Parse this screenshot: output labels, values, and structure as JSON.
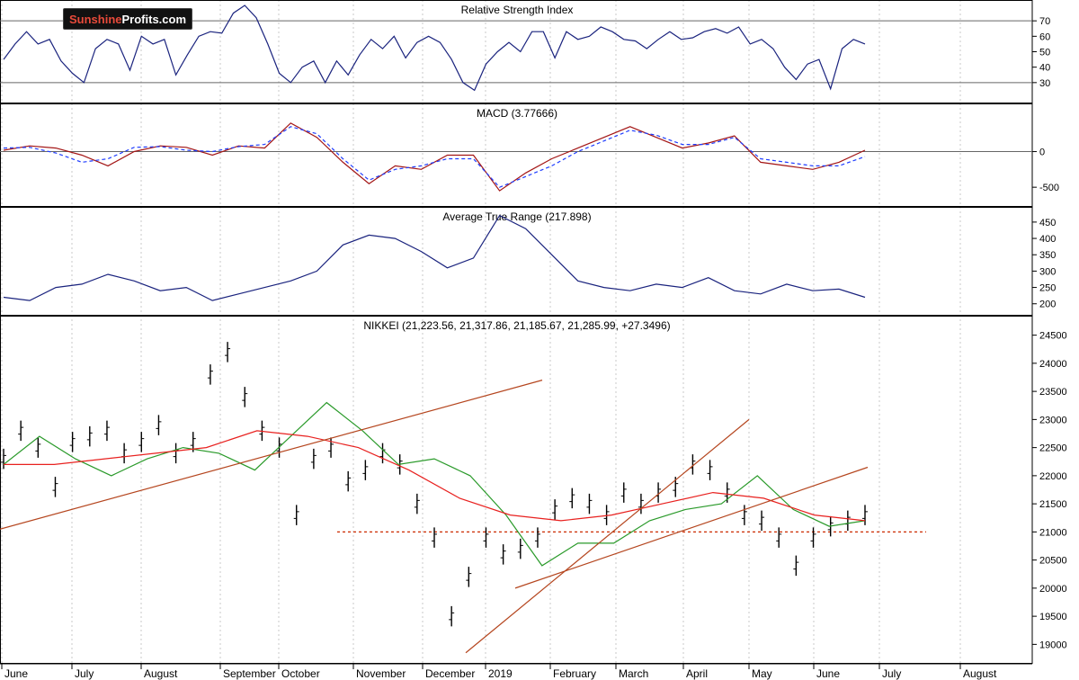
{
  "brand": {
    "part1": "Sunshine",
    "part2": "Profits.com"
  },
  "colors": {
    "price": "#000000",
    "rsi": "#1a237e",
    "macd": "#a31515",
    "signal": "#1e3cff",
    "atr": "#1a237e",
    "sma_fast": "#2a9a2a",
    "sma_slow": "#e8211f",
    "trendline": "#b5461f",
    "support": "#cc2a00",
    "grid": "#c8c8c8"
  },
  "chart_data": [
    {
      "type": "line",
      "title": "Relative Strength Index",
      "ylim": [
        20,
        80
      ],
      "yticks": [
        70,
        60,
        50,
        40,
        30
      ],
      "reference_lines": [
        70,
        30
      ],
      "series": [
        {
          "values": [
            45,
            55,
            63,
            55,
            58,
            44,
            36,
            30,
            52,
            58,
            55,
            38,
            60,
            55,
            58,
            35,
            48,
            60,
            63,
            62,
            75,
            80,
            72,
            55,
            36,
            30,
            40,
            44,
            30,
            44,
            35,
            48,
            58,
            52,
            60,
            46,
            56,
            60,
            56,
            45,
            30,
            25,
            42,
            50,
            56,
            50,
            63,
            63,
            46,
            63,
            58,
            60,
            66,
            63,
            58,
            57,
            52,
            58,
            63,
            58,
            59,
            63,
            65,
            62,
            66,
            55,
            58,
            52,
            40,
            32,
            42,
            45,
            26,
            52,
            58,
            55
          ]
        }
      ]
    },
    {
      "type": "line",
      "title": "MACD (3.77666)",
      "ylim": [
        -700,
        600
      ],
      "yticks": [
        0,
        -500
      ],
      "series": [
        {
          "values": [
            20,
            80,
            50,
            -50,
            -200,
            0,
            80,
            60,
            -50,
            80,
            50,
            400,
            200,
            -150,
            -450,
            -200,
            -250,
            -50,
            -50,
            -550,
            -300,
            -100,
            50,
            200,
            350,
            200,
            50,
            120,
            220,
            -150,
            -200,
            -250,
            -150,
            20
          ]
        },
        {
          "values": [
            50,
            60,
            -20,
            -150,
            -100,
            60,
            70,
            20,
            0,
            70,
            100,
            350,
            250,
            -100,
            -400,
            -250,
            -200,
            -100,
            -100,
            -500,
            -350,
            -200,
            0,
            150,
            300,
            230,
            100,
            100,
            200,
            -100,
            -150,
            -200,
            -200,
            -70
          ]
        }
      ]
    },
    {
      "type": "line",
      "title": "Average True Range (217.898)",
      "ylim": [
        180,
        480
      ],
      "yticks": [
        450,
        400,
        350,
        300,
        250,
        200
      ],
      "series": [
        {
          "values": [
            220,
            210,
            250,
            260,
            290,
            270,
            240,
            250,
            210,
            230,
            250,
            270,
            300,
            380,
            410,
            400,
            360,
            310,
            340,
            470,
            430,
            350,
            270,
            250,
            240,
            260,
            250,
            280,
            240,
            230,
            260,
            240,
            245,
            220
          ]
        }
      ]
    },
    {
      "type": "line",
      "title": "NIKKEI (21,223.56, 21,317.86, 21,185.67, 21,285.99, +27.3496)",
      "ylim": [
        18750,
        24750
      ],
      "yticks": [
        24500,
        24000,
        23500,
        23000,
        22500,
        22000,
        21500,
        21000,
        20500,
        20000,
        19500,
        19000
      ],
      "xlabels": [
        "June",
        "July",
        "August",
        "September",
        "October",
        "November",
        "December",
        "2019",
        "February",
        "March",
        "April",
        "May",
        "June",
        "July",
        "August"
      ],
      "series": [
        {
          "name": "",
          "values": [
            22300,
            22800,
            22500,
            21800,
            22600,
            22700,
            22800,
            22400,
            22600,
            22900,
            22400,
            22600,
            23800,
            24200,
            23400,
            22800,
            22500,
            21300,
            22300,
            22500,
            21900,
            22100,
            22400,
            22200,
            21500,
            20900,
            19500,
            20200,
            20900,
            20600,
            20700,
            20900,
            21400,
            21600,
            21500,
            21300,
            21700,
            21500,
            21700,
            21800,
            22200,
            22100,
            21700,
            21300,
            21200,
            20900,
            20400,
            20900,
            21100,
            21200,
            21300
          ]
        },
        {
          "name": "",
          "values": [
            22200,
            22700,
            22300,
            22000,
            22300,
            22500,
            22400,
            22100,
            22700,
            23300,
            22800,
            22200,
            22300,
            22000,
            21300,
            20400,
            20800,
            20800,
            21200,
            21400,
            21500,
            22000,
            21400,
            21100,
            21200
          ]
        },
        {
          "name": "",
          "values": [
            22200,
            22200,
            22300,
            22400,
            22500,
            22800,
            22700,
            22500,
            22100,
            21600,
            21300,
            21200,
            21300,
            21500,
            21700,
            21600,
            21300,
            21200
          ]
        }
      ],
      "reference_lines": [
        21000
      ]
    }
  ]
}
